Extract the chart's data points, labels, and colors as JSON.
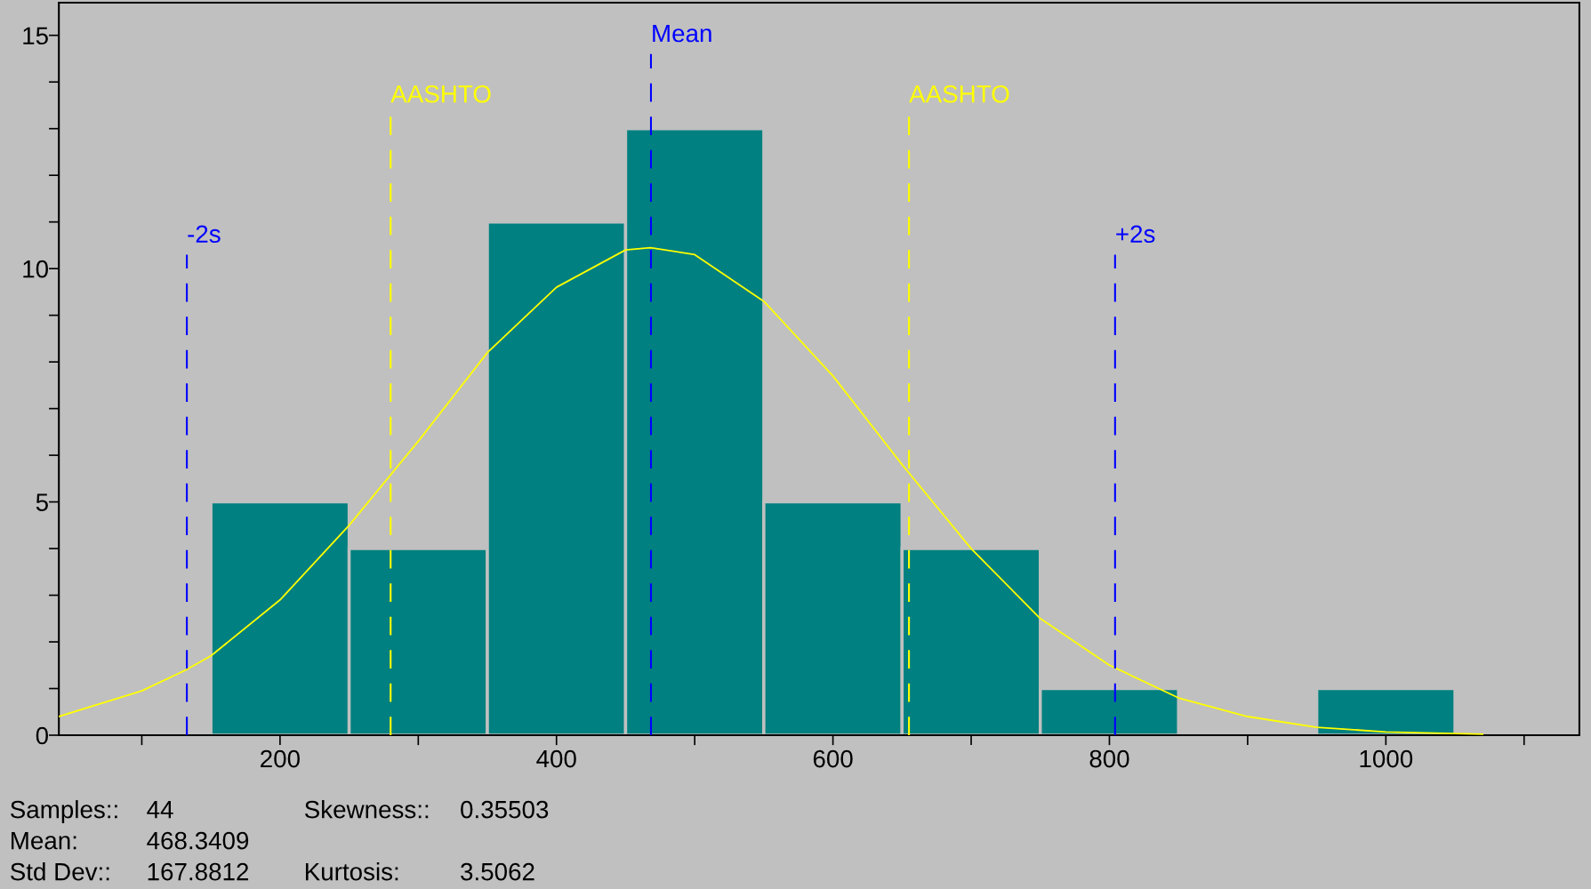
{
  "chart_data": {
    "type": "histogram",
    "series": [
      {
        "type": "histogram",
        "bins": [
          150,
          250,
          350,
          450,
          550,
          650,
          750,
          850,
          950,
          1050
        ],
        "values": [
          5,
          4,
          11,
          13,
          5,
          4,
          1,
          0,
          1
        ],
        "color": "#008080"
      },
      {
        "type": "line",
        "x": [
          40,
          100,
          132,
          150,
          200,
          250,
          300,
          350,
          400,
          450,
          468,
          500,
          550,
          600,
          650,
          700,
          750,
          800,
          850,
          900,
          950,
          1000,
          1070
        ],
        "values": [
          0.4,
          0.95,
          1.4,
          1.7,
          2.9,
          4.5,
          6.3,
          8.2,
          9.6,
          10.4,
          10.45,
          10.3,
          9.3,
          7.7,
          5.8,
          4.0,
          2.5,
          1.5,
          0.8,
          0.4,
          0.17,
          0.07,
          0.02
        ],
        "color": "#ffff00"
      }
    ],
    "xlim": [
      40,
      1140
    ],
    "xticks": [
      {
        "value": 100,
        "label": null
      },
      200,
      {
        "value": 300,
        "label": null
      },
      400,
      {
        "value": 500,
        "label": null
      },
      600,
      {
        "value": 700,
        "label": null
      },
      800,
      {
        "value": 900,
        "label": null
      },
      1000,
      {
        "value": 1100,
        "label": null
      }
    ],
    "ylim": [
      0,
      15.7
    ],
    "yticks": [
      0,
      {
        "value": 1,
        "label": null
      },
      {
        "value": 2,
        "label": null
      },
      {
        "value": 3,
        "label": null
      },
      {
        "value": 4,
        "label": null
      },
      5,
      {
        "value": 6,
        "label": null
      },
      {
        "value": 7,
        "label": null
      },
      {
        "value": 8,
        "label": null
      },
      {
        "value": 9,
        "label": null
      },
      10,
      {
        "value": 11,
        "label": null
      },
      {
        "value": 12,
        "label": null
      },
      {
        "value": 13,
        "label": null
      },
      {
        "value": 14,
        "label": null
      },
      15
    ],
    "ref_lines": [
      {
        "axis": "x",
        "value": 132.58,
        "label": "-2s",
        "color": "#0000ff",
        "line_style": "dashed"
      },
      {
        "axis": "x",
        "value": 280,
        "label": "AASHTO",
        "color": "#ffff00",
        "line_style": "dashed"
      },
      {
        "axis": "x",
        "value": 468.34,
        "label": "Mean",
        "color": "#0000ff",
        "line_style": "dashed"
      },
      {
        "axis": "x",
        "value": 655,
        "label": "AASHTO",
        "color": "#ffff00",
        "line_style": "dashed"
      },
      {
        "axis": "x",
        "value": 804.1,
        "label": "+2s",
        "color": "#0000ff",
        "line_style": "dashed"
      }
    ],
    "annotations": [
      "Samples::",
      "44",
      "Skewness::",
      "0.35503",
      "Mean:",
      "468.3409",
      "Std Dev::",
      "167.8812",
      "Kurtosis:",
      "3.5062"
    ],
    "grid": false
  }
}
